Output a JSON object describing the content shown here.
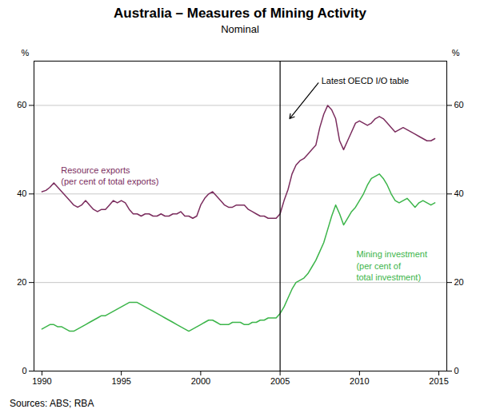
{
  "chart_data": {
    "type": "line",
    "title": "Australia – Measures of Mining Activity",
    "subtitle": "Nominal",
    "source": "Sources:  ABS; RBA",
    "x": [
      1990.0,
      1990.25,
      1990.5,
      1990.75,
      1991.0,
      1991.25,
      1991.5,
      1991.75,
      1992.0,
      1992.25,
      1992.5,
      1992.75,
      1993.0,
      1993.25,
      1993.5,
      1993.75,
      1994.0,
      1994.25,
      1994.5,
      1994.75,
      1995.0,
      1995.25,
      1995.5,
      1995.75,
      1996.0,
      1996.25,
      1996.5,
      1996.75,
      1997.0,
      1997.25,
      1997.5,
      1997.75,
      1998.0,
      1998.25,
      1998.5,
      1998.75,
      1999.0,
      1999.25,
      1999.5,
      1999.75,
      2000.0,
      2000.25,
      2000.5,
      2000.75,
      2001.0,
      2001.25,
      2001.5,
      2001.75,
      2002.0,
      2002.25,
      2002.5,
      2002.75,
      2003.0,
      2003.25,
      2003.5,
      2003.75,
      2004.0,
      2004.25,
      2004.5,
      2004.75,
      2005.0,
      2005.25,
      2005.5,
      2005.75,
      2006.0,
      2006.25,
      2006.5,
      2006.75,
      2007.0,
      2007.25,
      2007.5,
      2007.75,
      2008.0,
      2008.25,
      2008.5,
      2008.75,
      2009.0,
      2009.25,
      2009.5,
      2009.75,
      2010.0,
      2010.25,
      2010.5,
      2010.75,
      2011.0,
      2011.25,
      2011.5,
      2011.75,
      2012.0,
      2012.25,
      2012.5,
      2012.75,
      2013.0,
      2013.25,
      2013.5,
      2013.75,
      2014.0,
      2014.25,
      2014.5,
      2014.75
    ],
    "series": [
      {
        "name": "Resource exports\n(per cent of total exports)",
        "color": "#7B2D5E",
        "values": [
          40.5,
          40.8,
          41.5,
          42.5,
          41.5,
          40.5,
          39.5,
          38.5,
          37.5,
          37.0,
          37.5,
          38.5,
          37.5,
          36.5,
          36.0,
          36.5,
          36.5,
          37.5,
          38.5,
          38.0,
          38.5,
          38.0,
          36.5,
          35.5,
          35.5,
          35.0,
          35.5,
          35.5,
          35.0,
          35.0,
          35.5,
          35.0,
          35.0,
          35.5,
          35.5,
          36.0,
          35.0,
          35.0,
          34.5,
          35.0,
          37.5,
          39.0,
          40.0,
          40.5,
          39.5,
          38.5,
          37.5,
          37.0,
          37.0,
          37.5,
          37.5,
          37.5,
          36.5,
          36.0,
          35.5,
          35.0,
          35.0,
          34.5,
          34.5,
          34.5,
          35.5,
          38.5,
          41.0,
          44.5,
          46.5,
          47.5,
          48.0,
          49.0,
          50.0,
          51.0,
          55.0,
          58.0,
          60.0,
          59.0,
          57.0,
          52.0,
          50.0,
          52.0,
          54.0,
          56.0,
          56.5,
          56.0,
          55.5,
          56.0,
          57.0,
          57.5,
          57.0,
          56.0,
          55.0,
          54.0,
          54.5,
          55.0,
          54.5,
          54.0,
          53.5,
          53.0,
          52.5,
          52.0,
          52.0,
          52.5
        ]
      },
      {
        "name": "Mining investment\n(per cent of\ntotal investment)",
        "color": "#3CB54A",
        "values": [
          9.5,
          10.0,
          10.5,
          10.5,
          10.0,
          10.0,
          9.5,
          9.0,
          9.0,
          9.5,
          10.0,
          10.5,
          11.0,
          11.5,
          12.0,
          12.5,
          12.5,
          13.0,
          13.5,
          14.0,
          14.5,
          15.0,
          15.5,
          15.5,
          15.5,
          15.0,
          14.5,
          14.0,
          13.5,
          13.0,
          12.5,
          12.0,
          11.5,
          11.0,
          10.5,
          10.0,
          9.5,
          9.0,
          9.5,
          10.0,
          10.5,
          11.0,
          11.5,
          11.5,
          11.0,
          10.5,
          10.5,
          10.5,
          11.0,
          11.0,
          11.0,
          10.5,
          10.5,
          11.0,
          11.0,
          11.5,
          11.5,
          12.0,
          12.0,
          12.0,
          13.0,
          14.5,
          16.5,
          18.5,
          20.0,
          20.5,
          21.0,
          22.0,
          23.5,
          25.0,
          27.0,
          29.0,
          32.0,
          35.0,
          37.5,
          35.5,
          33.0,
          34.5,
          36.0,
          37.0,
          38.5,
          40.0,
          42.0,
          43.5,
          44.0,
          44.5,
          43.5,
          42.0,
          40.0,
          38.5,
          38.0,
          38.5,
          39.0,
          38.0,
          37.0,
          38.0,
          38.5,
          38.0,
          37.5,
          38.0
        ]
      }
    ],
    "xlim": [
      1989.5,
      2015.5
    ],
    "xticks": [
      1990,
      1995,
      2000,
      2005,
      2010,
      2015
    ],
    "ylim": [
      0,
      70
    ],
    "yticks": [
      0,
      20,
      40,
      60
    ],
    "y2lim": [
      0,
      70
    ],
    "y2ticks": [
      0,
      20,
      40,
      60
    ],
    "ylabel": "%",
    "y2label": "%",
    "grid": true,
    "vlines": [
      2005
    ],
    "annotations": [
      {
        "text": "Latest OECD I/O table"
      }
    ]
  }
}
